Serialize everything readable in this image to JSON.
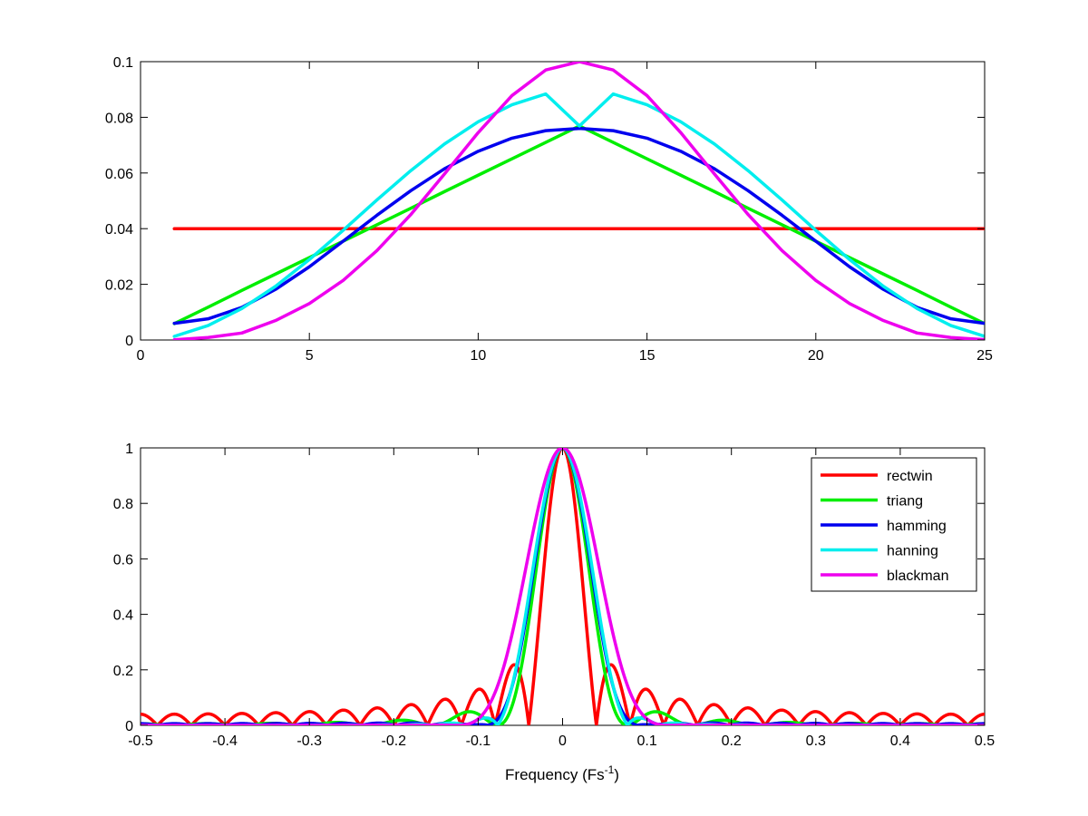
{
  "chart_data": [
    {
      "type": "line",
      "title": "",
      "xlabel": "",
      "ylabel": "",
      "xlim": [
        0,
        25
      ],
      "ylim": [
        0,
        0.1
      ],
      "xticks": [
        0,
        5,
        10,
        15,
        20,
        25
      ],
      "xtick_labels": [
        "0",
        "5",
        "10",
        "15",
        "20",
        "25"
      ],
      "yticks": [
        0,
        0.02,
        0.04,
        0.06,
        0.08,
        0.1
      ],
      "ytick_labels": [
        "0",
        "0.02",
        "0.04",
        "0.06",
        "0.08",
        "0.1"
      ],
      "grid": false,
      "x": [
        1,
        2,
        3,
        4,
        5,
        6,
        7,
        8,
        9,
        10,
        11,
        12,
        13,
        14,
        15,
        16,
        17,
        18,
        19,
        20,
        21,
        22,
        23,
        24,
        25
      ],
      "series": [
        {
          "name": "rectwin",
          "color": "#ff0000",
          "values": [
            0.04,
            0.04,
            0.04,
            0.04,
            0.04,
            0.04,
            0.04,
            0.04,
            0.04,
            0.04,
            0.04,
            0.04,
            0.04,
            0.04,
            0.04,
            0.04,
            0.04,
            0.04,
            0.04,
            0.04,
            0.04,
            0.04,
            0.04,
            0.04,
            0.04
          ]
        },
        {
          "name": "triang",
          "color": "#00ee00",
          "values": [
            0.0059,
            0.0118,
            0.0178,
            0.0237,
            0.0296,
            0.0355,
            0.0414,
            0.0473,
            0.0533,
            0.0592,
            0.0651,
            0.071,
            0.0769,
            0.071,
            0.0651,
            0.0592,
            0.0533,
            0.0473,
            0.0414,
            0.0355,
            0.0296,
            0.0237,
            0.0178,
            0.0118,
            0.0059
          ]
        },
        {
          "name": "hamming",
          "color": "#0000ee",
          "values": [
            0.006,
            0.0076,
            0.0117,
            0.0182,
            0.0263,
            0.0355,
            0.0448,
            0.0536,
            0.0615,
            0.0678,
            0.0725,
            0.0752,
            0.076,
            0.0752,
            0.0725,
            0.0678,
            0.0615,
            0.0536,
            0.0448,
            0.0355,
            0.0263,
            0.0182,
            0.0117,
            0.0076,
            0.006
          ]
        },
        {
          "name": "hanning",
          "color": "#00eeee",
          "values": [
            0.0013,
            0.0052,
            0.0113,
            0.0193,
            0.0289,
            0.0394,
            0.0503,
            0.0608,
            0.0704,
            0.0784,
            0.0845,
            0.0884,
            0.0769,
            0.0884,
            0.0845,
            0.0784,
            0.0704,
            0.0608,
            0.0503,
            0.0394,
            0.0289,
            0.0193,
            0.0113,
            0.0052,
            0.0013
          ]
        },
        {
          "name": "blackman",
          "color": "#ee00ee",
          "values": [
            0.0001,
            0.0009,
            0.0025,
            0.007,
            0.0131,
            0.0214,
            0.0321,
            0.045,
            0.0596,
            0.0745,
            0.0878,
            0.097,
            0.1,
            0.097,
            0.0878,
            0.0745,
            0.0596,
            0.045,
            0.0321,
            0.0214,
            0.0131,
            0.007,
            0.0025,
            0.0009,
            0.0001
          ]
        }
      ]
    },
    {
      "type": "line",
      "title": "",
      "xlabel": "Frequency (Fs",
      "xlabel_superscript": "-1",
      "xlabel_suffix": ")",
      "ylabel": "",
      "xlim": [
        -0.5,
        0.5
      ],
      "ylim": [
        0,
        1
      ],
      "xticks": [
        -0.5,
        -0.4,
        -0.3,
        -0.2,
        -0.1,
        0,
        0.1,
        0.2,
        0.3,
        0.4,
        0.5
      ],
      "xtick_labels": [
        "-0.5",
        "-0.4",
        "-0.3",
        "-0.2",
        "-0.1",
        "0",
        "0.1",
        "0.2",
        "0.3",
        "0.4",
        "0.5"
      ],
      "yticks": [
        0,
        0.2,
        0.4,
        0.6,
        0.8,
        1
      ],
      "ytick_labels": [
        "0",
        "0.2",
        "0.4",
        "0.6",
        "0.8",
        "1"
      ],
      "grid": false,
      "legend": "top-right",
      "window_length": 25,
      "series": [
        {
          "name": "rectwin",
          "color": "#ff0000"
        },
        {
          "name": "triang",
          "color": "#00ee00"
        },
        {
          "name": "hamming",
          "color": "#0000ee"
        },
        {
          "name": "hanning",
          "color": "#00eeee"
        },
        {
          "name": "blackman",
          "color": "#ee00ee"
        }
      ]
    }
  ]
}
